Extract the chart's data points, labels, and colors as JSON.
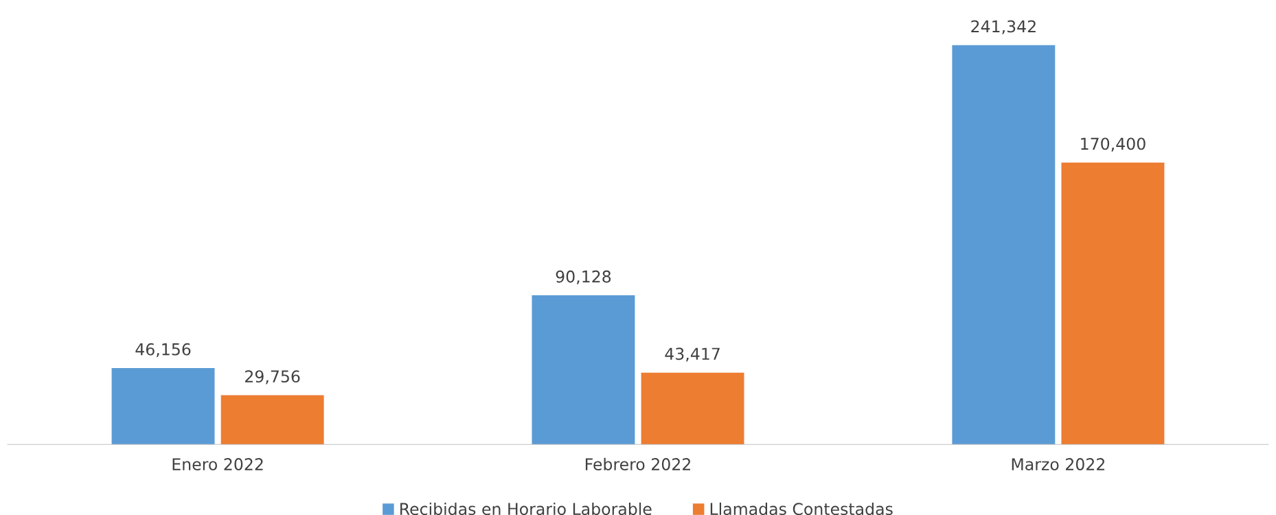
{
  "chart_data": {
    "type": "bar",
    "categories": [
      "Enero 2022",
      "Febrero 2022",
      "Marzo 2022"
    ],
    "series": [
      {
        "name": "Recibidas en Horario Laborable",
        "color": "#5b9bd5",
        "values": [
          46156,
          90128,
          241342
        ],
        "value_labels": [
          "46,156",
          "90,128",
          "241,342"
        ]
      },
      {
        "name": "Llamadas Contestadas",
        "color": "#ed7d31",
        "values": [
          29756,
          43417,
          170400
        ],
        "value_labels": [
          "29,756",
          "43,417",
          "170,400"
        ]
      }
    ],
    "grid": false,
    "legend": "bottom"
  }
}
